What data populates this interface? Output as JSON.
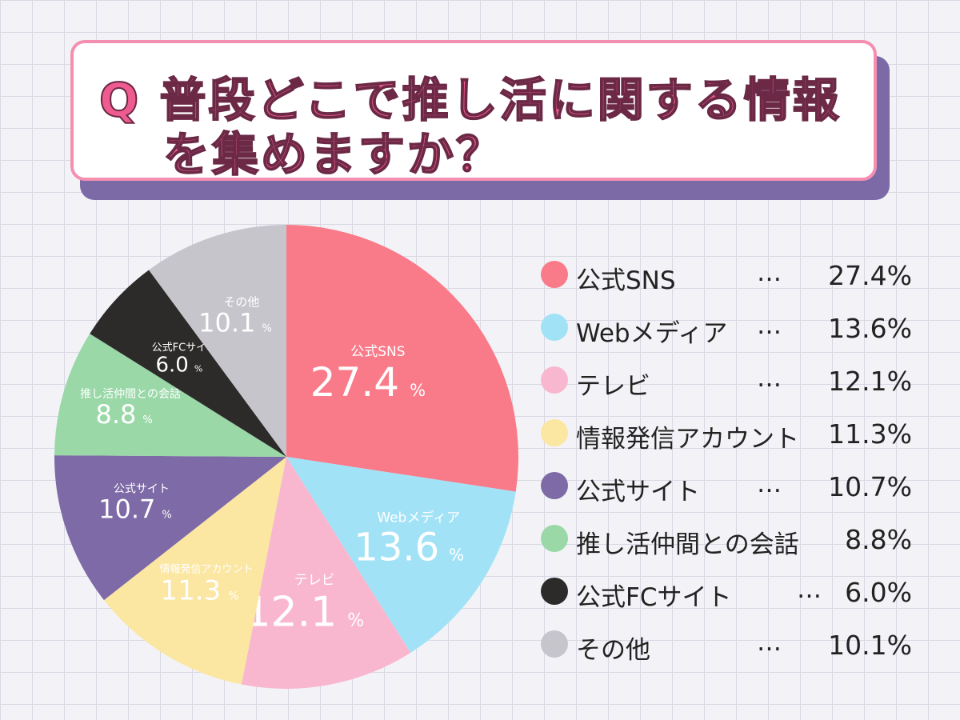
{
  "title": {
    "line1": "Q 普段どこで推し活に関する情報",
    "line2": "を集めますか？"
  },
  "chart_data": {
    "type": "pie",
    "categories": [
      "公式SNS",
      "Webメディア",
      "テレビ",
      "情報発信アカウント",
      "公式サイト",
      "推し活仲間との会話",
      "公式FCサイト",
      "その他"
    ],
    "values": [
      27.4,
      13.6,
      12.1,
      11.3,
      10.7,
      8.8,
      6.0,
      10.1
    ],
    "value_labels": [
      "27.4",
      "13.6",
      "12.1",
      "11.3",
      "10.7",
      "8.8",
      "6.0",
      "10.1"
    ],
    "legend_values": [
      "27.4%",
      "13.6%",
      "12.1%",
      "11.3%",
      "10.7%",
      "8.8%",
      "6.0%",
      "10.1%"
    ],
    "percent_sign": "%",
    "colors": [
      "#f97b89",
      "#a2e2f7",
      "#f8b7cf",
      "#fbe6a2",
      "#7d6aa6",
      "#9ad8a8",
      "#2c2b29",
      "#c6c5cc"
    ],
    "label_colors": [
      "#ffffff",
      "#ffffff",
      "#ffffff",
      "#ffffff",
      "#ffffff",
      "#ffffff",
      "#ffffff",
      "#ffffff"
    ],
    "legend_separators": [
      "…",
      "…",
      "…",
      "",
      "…",
      "",
      "…",
      "…"
    ],
    "start_angle_deg": 0,
    "direction": "clockwise",
    "legend_position": "right"
  }
}
